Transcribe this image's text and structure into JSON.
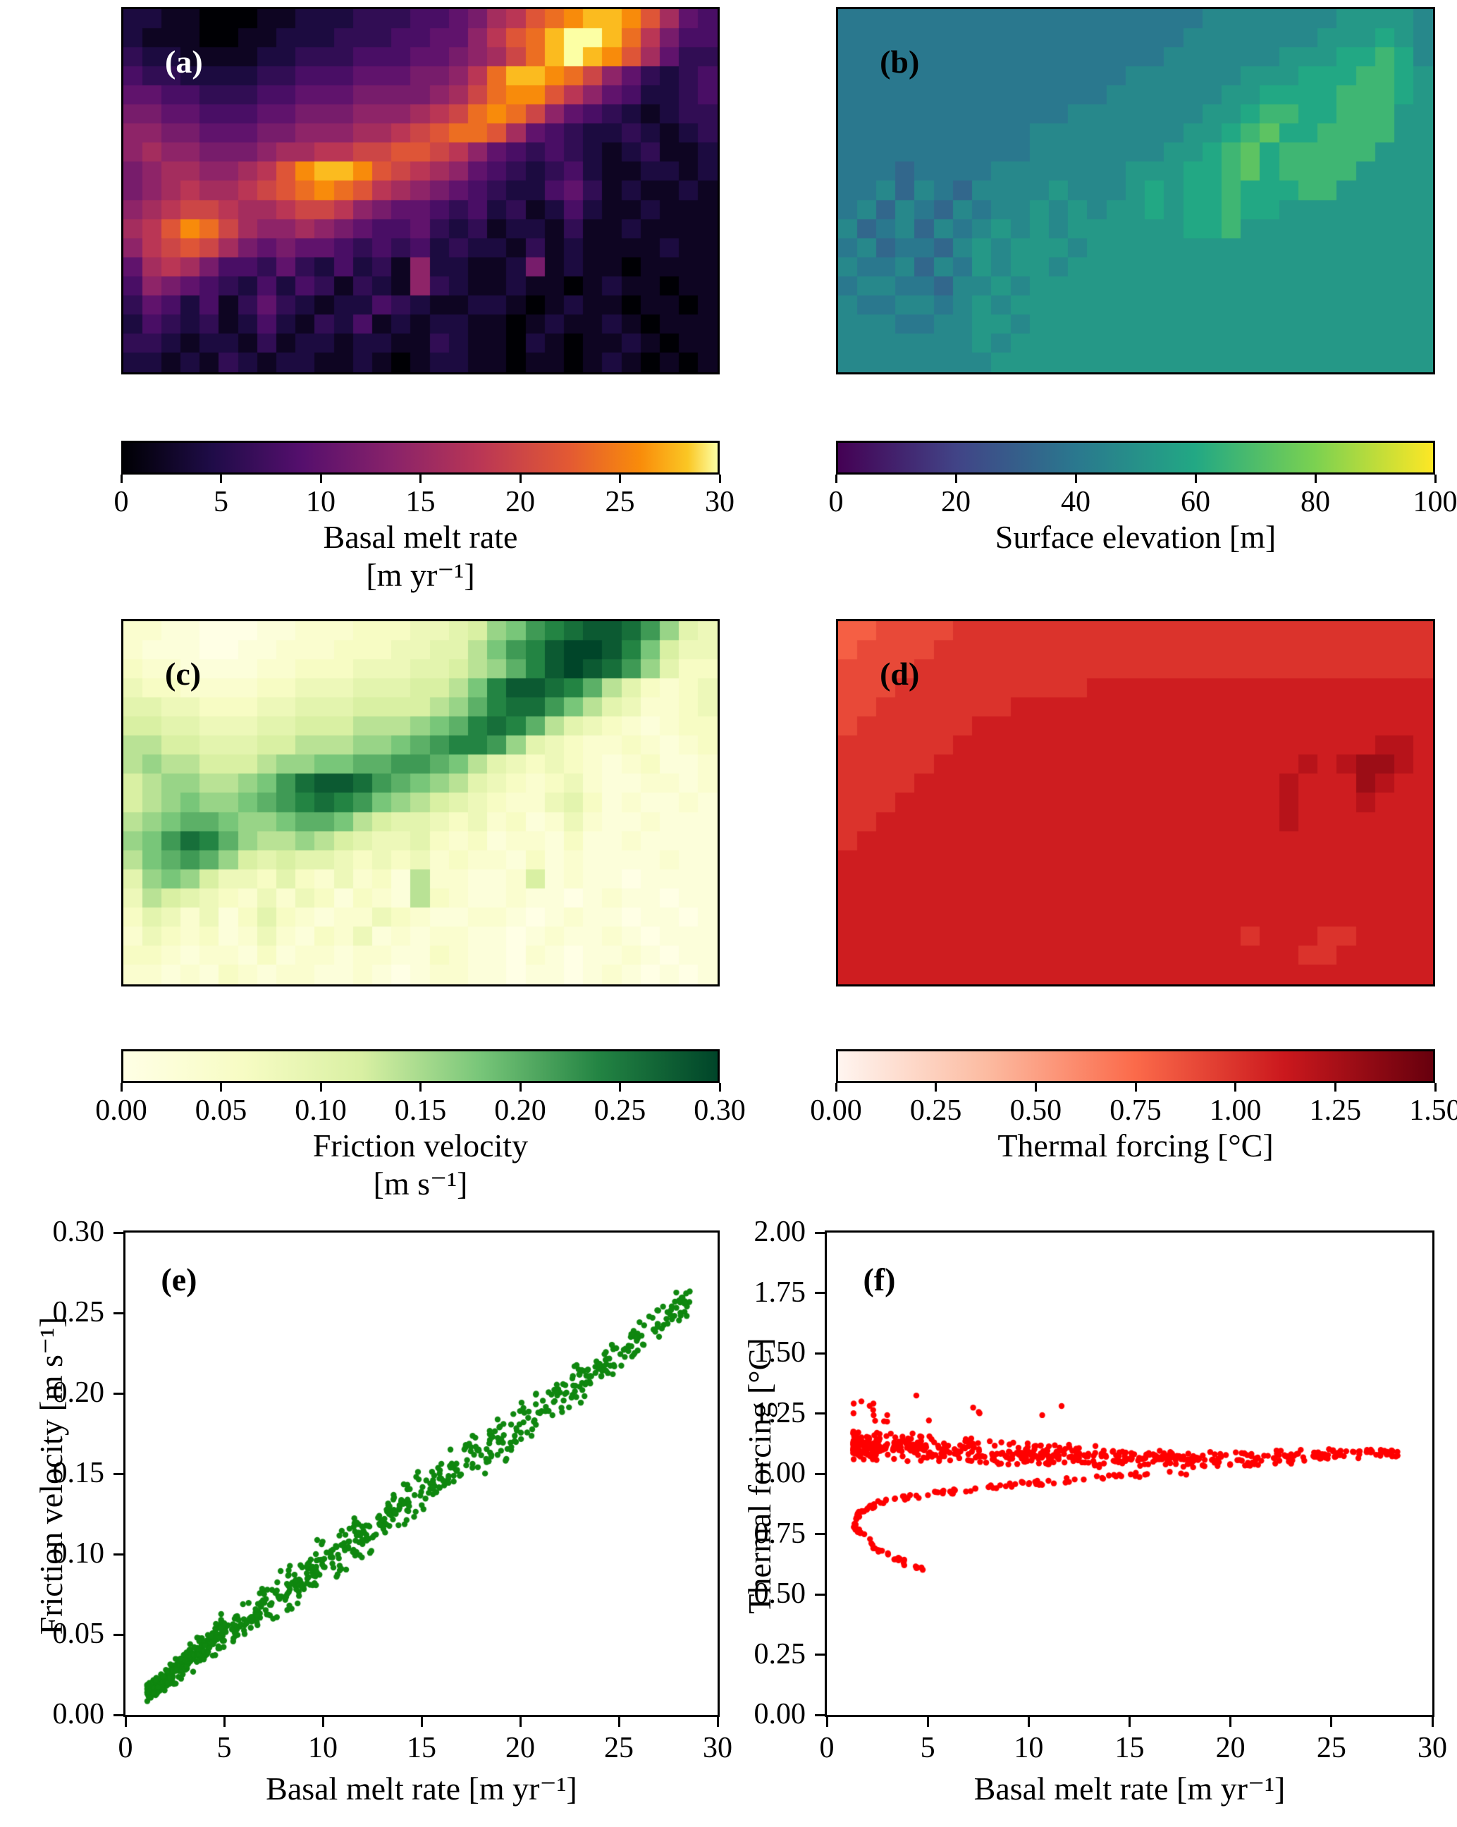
{
  "figure": {
    "background": "#ffffff",
    "text_color": "#000000",
    "value_encoding": "heatmap grids are rows of hex digits 0-F mapped linearly from vmin to vmax"
  },
  "colormaps": {
    "inferno": [
      [
        0,
        "#000004"
      ],
      [
        0.15,
        "#1f0c48"
      ],
      [
        0.3,
        "#550f6d"
      ],
      [
        0.45,
        "#88226a"
      ],
      [
        0.6,
        "#ba3655"
      ],
      [
        0.75,
        "#e35933"
      ],
      [
        0.87,
        "#f98c0a"
      ],
      [
        0.95,
        "#fbc724"
      ],
      [
        1,
        "#fcffa4"
      ]
    ],
    "viridis": [
      [
        0,
        "#440154"
      ],
      [
        0.2,
        "#414487"
      ],
      [
        0.4,
        "#2a788e"
      ],
      [
        0.6,
        "#22a884"
      ],
      [
        0.8,
        "#7ad151"
      ],
      [
        1,
        "#fde725"
      ]
    ],
    "ylgn": [
      [
        0,
        "#ffffe5"
      ],
      [
        0.2,
        "#f7fcc4"
      ],
      [
        0.4,
        "#d9f0a3"
      ],
      [
        0.6,
        "#78c679"
      ],
      [
        0.8,
        "#238443"
      ],
      [
        1,
        "#004529"
      ]
    ],
    "reds": [
      [
        0,
        "#fff5f0"
      ],
      [
        0.25,
        "#fcbba1"
      ],
      [
        0.5,
        "#fb6a4a"
      ],
      [
        0.75,
        "#cb181d"
      ],
      [
        1,
        "#67000d"
      ]
    ]
  },
  "chart_data": [
    {
      "id": "a",
      "type": "heatmap",
      "panel_label": "(a)",
      "label_color": "#ffffff",
      "colormap": "inferno",
      "vmin": 0,
      "vmax": 30,
      "colorbar": {
        "ticks": [
          "0",
          "5",
          "10",
          "15",
          "20",
          "25",
          "30"
        ],
        "label_line1": "Basal melt rate",
        "label_line2": "[m yr⁻¹]"
      },
      "grid": [
        "221100011222333445689BCDEEDB854",
        "21110011222333445579BCEFFEC9644",
        "32211112233344455678ACEFEDB8533",
        "4332222334445556679CEEDCA753234",
        "554433344555666678ACDDB97542234",
        "66554445566677789ACDCA754321233",
        "776655566777889ABCCB85432232123",
        "787766678899AABBA97543432123112",
        "67887789BDEEDBA9875432342112212",
        "6789889ABCDCB987654322453121121",
        "789AA9889AA97655434231242112111",
        "89BDCA8778765445323122131121111",
        "79ABA86565543434232213121111211",
        "5898644353242317221126121101111",
        "4765432424313217321121101211011",
        "3542413532122432112210121101101",
        "2432312421324121221101211210111",
        "3321221312212211321102101121011",
        "2212132122112101221101101210101"
      ]
    },
    {
      "id": "b",
      "type": "heatmap",
      "panel_label": "(b)",
      "label_color": "#000000",
      "colormap": "viridis",
      "vmin": 0,
      "vmax": 100,
      "colorbar": {
        "ticks": [
          "0",
          "20",
          "40",
          "60",
          "80",
          "100"
        ],
        "label_line1": "Surface elevation [m]",
        "label_line2": ""
      },
      "grid": [
        "6666666666666666666777777788887",
        "6666666666666666667777777888987",
        "6666666666666666677777788899A97",
        "666666666666666777777888999AA98",
        "66666666666666777777889999AAA98",
        "6666666666667777777889AA99AAA88",
        "666666666677777777889AB99AAAA88",
        "66666666667777777889AB9AAAAA888",
        "66656666777777788899AB9AAAA8888",
        "66757657777877789899A999AA88888",
        "67576576778787889899A9988888888",
        "75675767878788888899A8888888888",
        "6756657878887888888888888888888",
        "7667576878878888888888888888888",
        "6776657787888888888888888888888",
        "7667767878888888888888888888888",
        "7776677887888888888888888888888",
        "7777777878888888888888888888888",
        "7777777788888888888888888888888"
      ]
    },
    {
      "id": "c",
      "type": "heatmap",
      "panel_label": "(c)",
      "label_color": "#000000",
      "colormap": "ylgn",
      "vmin": 0,
      "vmax": 0.3,
      "grid_from": "a",
      "colorbar": {
        "ticks": [
          "0.00",
          "0.05",
          "0.10",
          "0.15",
          "0.20",
          "0.25",
          "0.30"
        ],
        "label_line1": "Friction velocity",
        "label_line2": "[m s⁻¹]"
      }
    },
    {
      "id": "d",
      "type": "heatmap",
      "panel_label": "(d)",
      "label_color": "#000000",
      "colormap": "reds",
      "vmin": 0,
      "vmax": 1.5,
      "colorbar": {
        "ticks": [
          "0.00",
          "0.25",
          "0.50",
          "0.75",
          "1.00",
          "1.25",
          "1.50"
        ],
        "label_line1": "Thermal forcing [°C]",
        "label_line2": ""
      },
      "grid": [
        "889999AAAAAAAAAAAAAAAAAAAAAAAAA",
        "89999AAAAAAAAAAAAAAAAAAAAAAAAAA",
        "9999AAAAAAAAAAAAAAAAAAAAAAAAAAA",
        "999AAAAAAAAAABBBBBBBBBBBBBBBBBB",
        "99AAAAAAABBBBBBBBBBBBBBBBBBBBBB",
        "9AAAAAABBBBBBBBBBBBBBBBBBBBBBBB",
        "AAAAAABBBBBBBBBBBBBBBBBBBBBBCCB",
        "AAAAABBBBBBBBBBBBBBBBBBBCBCDDCB",
        "AAAABBBBBBBBBBBBBBBBBBBCBBBDCBB",
        "AAABBBBBBBBBBBBBBBBBBBBCBBBCBBB",
        "AABBBBBBBBBBBBBBBBBBBBBCBBBBBBB",
        "ABBBBBBBBBBBBBBBBBBBBBBBBBBBBBB",
        "BBBBBBBBBBBBBBBBBBBBBBBBBBBBBBB",
        "BBBBBBBBBBBBBBBBBBBBBBBBBBBBBBB",
        "BBBBBBBBBBBBBBBBBBBBBBBBBBBBBBB",
        "BBBBBBBBBBBBBBBBBBBBBBBBBBBBBBB",
        "BBBBBBBBBBBBBBBBBBBBBABBBAABBBB",
        "BBBBBBBBBBBBBBBBBBBBBBBBAABBBBB",
        "BBBBBBBBBBBBBBBBBBBBBBBBBBBBBBB"
      ]
    },
    {
      "id": "e",
      "type": "scatter",
      "panel_label": "(e)",
      "label_color": "#000000",
      "color": "#0f870f",
      "marker_radius": 4.2,
      "xlabel": "Basal melt rate [m yr⁻¹]",
      "ylabel": "Friction velocity [m s⁻¹]",
      "xlim": [
        0,
        30
      ],
      "ylim": [
        0,
        0.3
      ],
      "x_ticks": [
        "0",
        "5",
        "10",
        "15",
        "20",
        "25",
        "30"
      ],
      "y_ticks": [
        "0.00",
        "0.05",
        "0.10",
        "0.15",
        "0.20",
        "0.25",
        "0.30"
      ],
      "n_points": 850,
      "seed": 42,
      "x_min": 1.1,
      "x_max": 28.6,
      "x_power": 1.6,
      "trend": {
        "x": [
          1,
          3,
          5,
          7,
          10,
          13,
          16,
          20,
          24,
          28.5
        ],
        "y": [
          0.013,
          0.032,
          0.052,
          0.068,
          0.094,
          0.12,
          0.146,
          0.18,
          0.215,
          0.258
        ]
      },
      "spread": {
        "x": [
          1,
          5,
          10,
          20,
          28.5
        ],
        "y": [
          0.004,
          0.009,
          0.012,
          0.011,
          0.007
        ]
      }
    },
    {
      "id": "f",
      "type": "scatter",
      "panel_label": "(f)",
      "label_color": "#000000",
      "color": "#ff0000",
      "marker_radius": 4.2,
      "xlabel": "Basal melt rate [m yr⁻¹]",
      "ylabel": "Thermal forcing [°C]",
      "xlim": [
        0,
        30
      ],
      "ylim": [
        0,
        2.0
      ],
      "x_ticks": [
        "0",
        "5",
        "10",
        "15",
        "20",
        "25",
        "30"
      ],
      "y_ticks": [
        "0.00",
        "0.25",
        "0.50",
        "0.75",
        "1.00",
        "1.25",
        "1.50",
        "1.75",
        "2.00"
      ],
      "seed": 7,
      "band": {
        "n": 600,
        "x_min": 1.3,
        "x_max": 28.6,
        "x_power": 1.8,
        "trend": {
          "x": [
            1.5,
            5,
            10,
            15,
            20,
            25,
            28.5
          ],
          "y": [
            1.12,
            1.1,
            1.08,
            1.065,
            1.06,
            1.08,
            1.09
          ]
        },
        "spread": {
          "x": [
            1.5,
            5,
            10,
            20,
            28.5
          ],
          "y": [
            0.045,
            0.042,
            0.035,
            0.025,
            0.015
          ]
        }
      },
      "hook": {
        "n": 140,
        "path_x": [
          4.8,
          2.6,
          1.35,
          1.6,
          2.6,
          4.2,
          6.5,
          9.5,
          13.5,
          18
        ],
        "path_y": [
          0.6,
          0.68,
          0.78,
          0.84,
          0.88,
          0.905,
          0.93,
          0.955,
          0.985,
          1.01
        ],
        "jitter_x_rel": 0.04,
        "jitter_y": 0.01
      },
      "outliers": {
        "n": 18,
        "x_min": 1.2,
        "x_max": 12,
        "x_power": 1.6,
        "y_min": 1.21,
        "y_max": 1.33
      }
    }
  ]
}
